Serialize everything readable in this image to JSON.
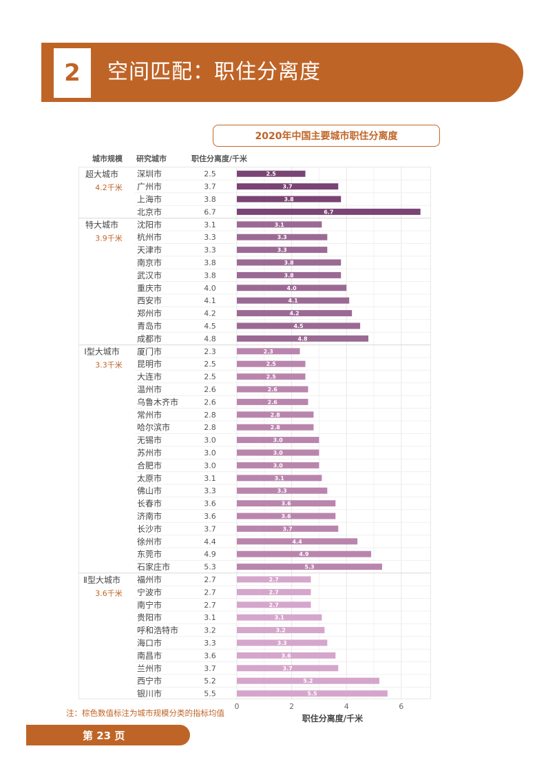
{
  "header": {
    "number": "2",
    "title": "空间匹配：职住分离度"
  },
  "chart_title": "2020年中国主要城市职住分离度",
  "columns": {
    "scale": "城市规模",
    "city": "研究城市",
    "value": "职住分离度/千米"
  },
  "note": "注：棕色数值标注为城市规模分类的指标均值",
  "footer": {
    "page": "第 23 页"
  },
  "colors": {
    "accent": "#bf6427",
    "grid": "#e6e6e6",
    "text": "#555555",
    "label": "#ffffff"
  },
  "chart_data": {
    "type": "bar",
    "orientation": "horizontal",
    "title": "2020年中国主要城市职住分离度",
    "xlabel": "职住分离度/千米",
    "xlim": [
      0,
      7
    ],
    "xticks": [
      0,
      2,
      4,
      6
    ],
    "groups": [
      {
        "name": "超大城市",
        "mean_label": "4.2千米",
        "color": "#7a4474",
        "cities": [
          "深圳市",
          "广州市",
          "上海市",
          "北京市"
        ],
        "values": [
          2.5,
          3.7,
          3.8,
          6.7
        ]
      },
      {
        "name": "特大城市",
        "mean_label": "3.9千米",
        "color": "#9b6a94",
        "cities": [
          "沈阳市",
          "杭州市",
          "天津市",
          "南京市",
          "武汉市",
          "重庆市",
          "西安市",
          "郑州市",
          "青岛市",
          "成都市"
        ],
        "values": [
          3.1,
          3.3,
          3.3,
          3.8,
          3.8,
          4.0,
          4.1,
          4.2,
          4.5,
          4.8
        ]
      },
      {
        "name": "Ⅰ型大城市",
        "mean_label": "3.3千米",
        "color": "#b985ad",
        "cities": [
          "厦门市",
          "昆明市",
          "大连市",
          "温州市",
          "乌鲁木齐市",
          "常州市",
          "哈尔滨市",
          "无锡市",
          "苏州市",
          "合肥市",
          "太原市",
          "佛山市",
          "长春市",
          "济南市",
          "长沙市",
          "徐州市",
          "东莞市",
          "石家庄市"
        ],
        "values": [
          2.3,
          2.5,
          2.5,
          2.6,
          2.6,
          2.8,
          2.8,
          3.0,
          3.0,
          3.0,
          3.1,
          3.3,
          3.6,
          3.6,
          3.7,
          4.4,
          4.9,
          5.3
        ]
      },
      {
        "name": "Ⅱ型大城市",
        "mean_label": "3.6千米",
        "color": "#d5a6cb",
        "cities": [
          "福州市",
          "宁波市",
          "南宁市",
          "贵阳市",
          "呼和浩特市",
          "海口市",
          "南昌市",
          "兰州市",
          "西宁市",
          "银川市"
        ],
        "values": [
          2.7,
          2.7,
          2.7,
          3.1,
          3.2,
          3.3,
          3.6,
          3.7,
          5.2,
          5.5
        ]
      }
    ]
  }
}
